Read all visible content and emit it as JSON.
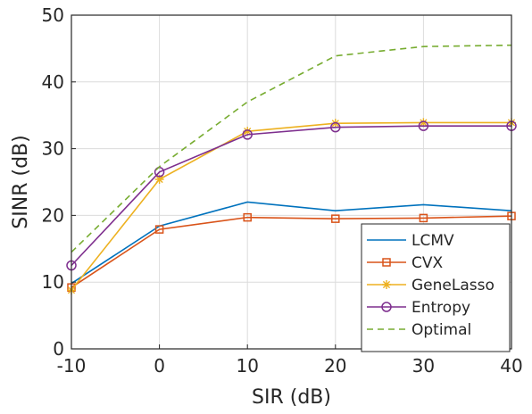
{
  "chart_data": {
    "type": "line",
    "xlabel": "SIR (dB)",
    "ylabel": "SINR (dB)",
    "xlim": [
      -10,
      40
    ],
    "ylim": [
      0,
      50
    ],
    "xticks": [
      "-10",
      "0",
      "10",
      "20",
      "30",
      "40"
    ],
    "yticks": [
      "0",
      "10",
      "20",
      "30",
      "40",
      "50"
    ],
    "grid": true,
    "legend_position": "bottom-right",
    "x": [
      -10,
      0,
      10,
      20,
      30,
      40
    ],
    "series": [
      {
        "name": "LCMV",
        "values": [
          9.8,
          18.4,
          22.0,
          20.7,
          21.6,
          20.7
        ],
        "color": "#0072BD",
        "marker": "none",
        "dash": "solid"
      },
      {
        "name": "CVX",
        "values": [
          9.2,
          17.9,
          19.7,
          19.5,
          19.6,
          19.9
        ],
        "color": "#D95319",
        "marker": "square",
        "dash": "solid"
      },
      {
        "name": "GeneLasso",
        "values": [
          8.8,
          25.4,
          32.6,
          33.8,
          33.9,
          33.9
        ],
        "color": "#EDB120",
        "marker": "asterisk",
        "dash": "solid"
      },
      {
        "name": "Entropy",
        "values": [
          12.5,
          26.5,
          32.1,
          33.2,
          33.4,
          33.4
        ],
        "color": "#7E2F8E",
        "marker": "circle",
        "dash": "solid"
      },
      {
        "name": "Optimal",
        "values": [
          14.5,
          27.3,
          37.0,
          43.9,
          45.3,
          45.5
        ],
        "color": "#77AC30",
        "marker": "none",
        "dash": "dashed"
      }
    ]
  }
}
